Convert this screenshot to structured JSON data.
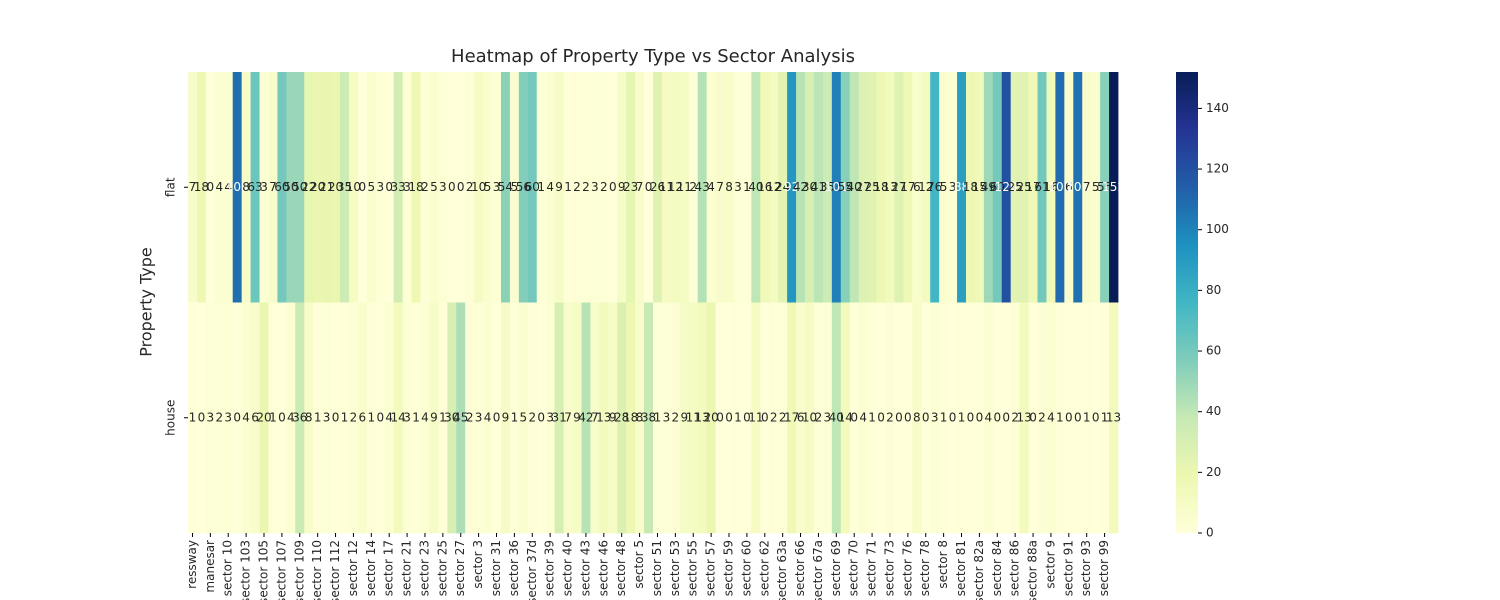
{
  "chart_data": {
    "type": "heatmap",
    "title": "Heatmap of Property Type vs Sector Analysis",
    "y_label": "Property Type",
    "rows": [
      "flat",
      "house"
    ],
    "categories": [
      "ressway",
      null,
      "manesar",
      null,
      "sector 10",
      null,
      "sector 103",
      null,
      "sector 105",
      null,
      "sector 107",
      null,
      "sector 109",
      null,
      "sector 110",
      null,
      "sector 112",
      null,
      "sector 12",
      null,
      "sector 14",
      null,
      "sector 17",
      null,
      "sector 21",
      null,
      "sector 23",
      null,
      "sector 25",
      null,
      "sector 27",
      null,
      "sector 3",
      null,
      "sector 31",
      null,
      "sector 36",
      null,
      "sector 37d",
      null,
      "sector 39",
      null,
      "sector 40",
      null,
      "sector 43",
      null,
      "sector 46",
      null,
      "sector 48",
      null,
      "sector 5",
      null,
      "sector 51",
      null,
      "sector 53",
      null,
      "sector 55",
      null,
      "sector 57",
      null,
      "sector 59",
      null,
      "sector 60",
      null,
      "sector 62",
      null,
      "sector 63a",
      null,
      "sector 66",
      null,
      "sector 67a",
      null,
      "sector 69",
      null,
      "sector 70",
      null,
      "sector 71",
      null,
      "sector 73",
      null,
      "sector 76",
      null,
      "sector 78",
      null,
      "sector 8",
      null,
      "sector 81",
      null,
      "sector 82a",
      null,
      "sector 84",
      null,
      "sector 86",
      null,
      "sector 88a",
      null,
      "sector 9",
      null,
      "sector 91",
      null,
      "sector 93",
      null,
      "sector 99",
      null
    ],
    "values": [
      [
        7,
        18,
        0,
        4,
        4,
        108,
        8,
        63,
        3,
        7,
        60,
        50,
        50,
        22,
        20,
        21,
        20,
        35,
        10,
        0,
        5,
        3,
        0,
        33,
        3,
        18,
        2,
        5,
        3,
        0,
        0,
        2,
        10,
        5,
        3,
        54,
        5,
        56,
        60,
        1,
        4,
        9,
        1,
        2,
        2,
        3,
        2,
        0,
        9,
        23,
        7,
        0,
        26,
        11,
        12,
        11,
        2,
        43,
        4,
        7,
        8,
        3,
        1,
        40,
        16,
        12,
        24,
        92,
        42,
        30,
        41,
        35,
        101,
        55,
        40,
        27,
        25,
        18,
        13,
        27,
        17,
        6,
        12,
        76,
        5,
        3,
        88,
        18,
        15,
        49,
        60,
        120,
        25,
        25,
        17,
        61,
        16,
        109,
        6,
        106,
        7,
        5,
        55,
        152
      ],
      [
        1,
        0,
        3,
        2,
        3,
        0,
        4,
        6,
        20,
        1,
        0,
        4,
        36,
        8,
        1,
        3,
        0,
        1,
        2,
        6,
        1,
        0,
        4,
        14,
        3,
        1,
        4,
        9,
        1,
        30,
        45,
        2,
        3,
        4,
        0,
        9,
        1,
        5,
        2,
        0,
        3,
        31,
        7,
        9,
        42,
        7,
        13,
        9,
        28,
        18,
        8,
        38,
        1,
        3,
        2,
        9,
        11,
        13,
        20,
        0,
        0,
        1,
        0,
        11,
        0,
        2,
        2,
        17,
        6,
        10,
        2,
        3,
        40,
        14,
        0,
        4,
        1,
        0,
        2,
        0,
        0,
        8,
        0,
        3,
        1,
        0,
        1,
        0,
        0,
        4,
        0,
        0,
        2,
        13,
        0,
        2,
        4,
        1,
        0,
        0,
        1,
        0,
        1,
        13
      ]
    ],
    "colormap": "YlGnBu",
    "zlim": [
      0,
      152
    ],
    "colorbar_ticks": [
      0,
      20,
      40,
      60,
      80,
      100,
      120,
      140
    ],
    "annotate": true
  }
}
